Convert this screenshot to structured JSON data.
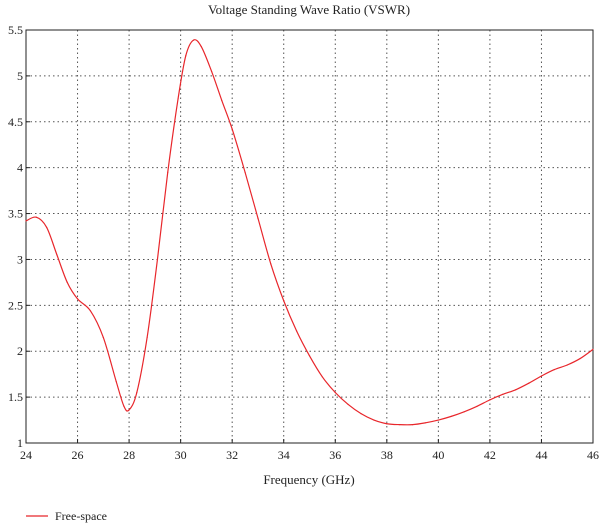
{
  "chart_data": {
    "type": "line",
    "title": "Voltage Standing Wave Ratio (VSWR)",
    "xlabel": "Frequency (GHz)",
    "ylabel": "",
    "xlim": [
      24,
      46
    ],
    "ylim": [
      1,
      5.5
    ],
    "xticks": [
      "24",
      "26",
      "28",
      "30",
      "32",
      "34",
      "36",
      "38",
      "40",
      "42",
      "44",
      "46"
    ],
    "yticks": [
      "1",
      "1.5",
      "2",
      "2.5",
      "3",
      "3.5",
      "4",
      "4.5",
      "5",
      "5.5"
    ],
    "grid": true,
    "legend_position": "bottom-left",
    "series": [
      {
        "name": "Free-space",
        "color": "#e8262b",
        "x": [
          24.0,
          24.4,
          24.8,
          25.2,
          25.6,
          26.0,
          26.5,
          27.0,
          27.5,
          27.8,
          28.0,
          28.3,
          28.7,
          29.1,
          29.5,
          29.9,
          30.2,
          30.5,
          30.8,
          31.2,
          31.6,
          32.0,
          32.5,
          33.0,
          33.5,
          34.0,
          34.5,
          35.0,
          35.5,
          36.0,
          36.5,
          37.0,
          37.5,
          38.0,
          38.5,
          39.0,
          39.5,
          40.0,
          40.5,
          41.0,
          41.5,
          42.0,
          42.5,
          43.0,
          43.5,
          44.0,
          44.5,
          45.0,
          45.5,
          46.0
        ],
        "values": [
          3.42,
          3.46,
          3.35,
          3.05,
          2.75,
          2.57,
          2.44,
          2.15,
          1.67,
          1.4,
          1.36,
          1.55,
          2.15,
          3.0,
          3.95,
          4.75,
          5.22,
          5.39,
          5.32,
          5.05,
          4.73,
          4.42,
          3.95,
          3.45,
          2.95,
          2.55,
          2.22,
          1.95,
          1.72,
          1.55,
          1.42,
          1.32,
          1.25,
          1.21,
          1.2,
          1.2,
          1.22,
          1.25,
          1.29,
          1.34,
          1.4,
          1.47,
          1.53,
          1.58,
          1.65,
          1.73,
          1.8,
          1.85,
          1.92,
          2.02
        ]
      }
    ]
  }
}
